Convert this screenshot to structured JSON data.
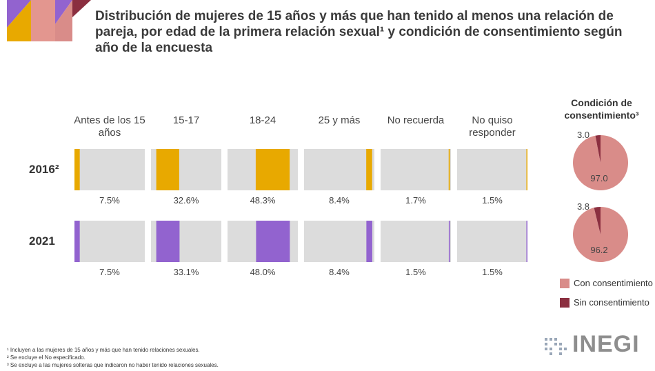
{
  "chart_data": [
    {
      "type": "bar",
      "title": "Distribución de mujeres de 15 años y más que han tenido al menos una relación de pareja, por edad de la primera relación sexual¹ y condición de consentimiento según año de la encuesta",
      "categories": [
        "Antes de los 15 años",
        "15-17",
        "18-24",
        "25 y más",
        "No recuerda",
        "No quiso responder"
      ],
      "ylim": [
        0,
        100
      ],
      "series": [
        {
          "name": "2016²",
          "color": "#e8a900",
          "values": [
            7.5,
            32.6,
            48.3,
            8.4,
            1.7,
            1.5
          ],
          "value_labels": [
            "7.5%",
            "32.6%",
            "48.3%",
            "8.4%",
            "1.7%",
            "1.5%"
          ]
        },
        {
          "name": "2021",
          "color": "#9263cf",
          "values": [
            7.5,
            33.1,
            48.0,
            8.4,
            1.5,
            1.5
          ],
          "value_labels": [
            "7.5%",
            "33.1%",
            "48.0%",
            "8.4%",
            "1.5%",
            "1.5%"
          ]
        }
      ]
    },
    {
      "type": "pie",
      "title": "Condición de consentimiento³",
      "categories": [
        "Con consentimiento",
        "Sin consentimiento"
      ],
      "colors": [
        "#d98c89",
        "#8b2f40"
      ],
      "series": [
        {
          "values": [
            97.0,
            3.0
          ],
          "value_labels": [
            "97.0",
            "3.0"
          ]
        },
        {
          "values": [
            96.2,
            3.8
          ],
          "value_labels": [
            "96.2",
            "3.8"
          ]
        }
      ]
    }
  ],
  "footnotes": [
    "¹ Incluyen a las mujeres de 15 años y más que han tenido relaciones sexuales.",
    "² Se excluye el No especificado.",
    "³ Se excluye a las mujeres solteras que indicaron no haber tenido relaciones sexuales."
  ],
  "logo": "INEGI"
}
